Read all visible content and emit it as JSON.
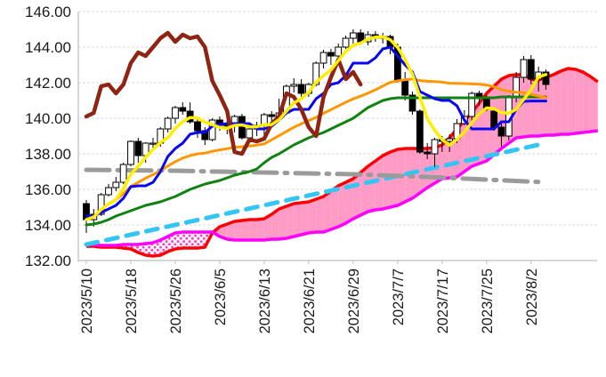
{
  "chart_data": {
    "type": "candlestick",
    "title": "",
    "xlabel": "",
    "ylabel": "",
    "ylim": [
      132,
      146
    ],
    "y_tick_step": 2,
    "grid": true,
    "legend_position": "none",
    "y_tick_labels": [
      "146.00",
      "144.00",
      "142.00",
      "140.00",
      "138.00",
      "136.00",
      "134.00",
      "132.00"
    ],
    "x_tick_labels": [
      "2023/5/10",
      "2023/5/18",
      "2023/5/26",
      "2023/6/5",
      "2023/6/13",
      "2023/6/21",
      "2023/6/29",
      "2023/7/7",
      "2023/7/17",
      "2023/7/25",
      "2023/8/2"
    ],
    "x_tick_interval": 6,
    "dates": [
      "2023/5/10",
      "2023/5/11",
      "2023/5/12",
      "2023/5/15",
      "2023/5/16",
      "2023/5/17",
      "2023/5/18",
      "2023/5/19",
      "2023/5/22",
      "2023/5/23",
      "2023/5/24",
      "2023/5/25",
      "2023/5/26",
      "2023/5/29",
      "2023/5/30",
      "2023/5/31",
      "2023/6/1",
      "2023/6/2",
      "2023/6/5",
      "2023/6/6",
      "2023/6/7",
      "2023/6/8",
      "2023/6/9",
      "2023/6/12",
      "2023/6/13",
      "2023/6/14",
      "2023/6/15",
      "2023/6/16",
      "2023/6/19",
      "2023/6/20",
      "2023/6/21",
      "2023/6/22",
      "2023/6/23",
      "2023/6/26",
      "2023/6/27",
      "2023/6/28",
      "2023/6/29",
      "2023/6/30",
      "2023/7/3",
      "2023/7/4",
      "2023/7/5",
      "2023/7/6",
      "2023/7/7",
      "2023/7/10",
      "2023/7/11",
      "2023/7/12",
      "2023/7/13",
      "2023/7/14",
      "2023/7/17",
      "2023/7/18",
      "2023/7/19",
      "2023/7/20",
      "2023/7/21",
      "2023/7/24",
      "2023/7/25",
      "2023/7/26",
      "2023/7/27",
      "2023/7/28",
      "2023/7/31",
      "2023/8/1",
      "2023/8/2",
      "2023/8/3",
      "2023/8/4"
    ],
    "ohlc": {
      "open": [
        135.2,
        134.3,
        134.6,
        135.7,
        136.1,
        136.4,
        137.4,
        138.7,
        137.9,
        138.6,
        138.6,
        139.4,
        140.0,
        140.6,
        140.4,
        139.8,
        139.3,
        138.8,
        139.9,
        139.6,
        139.6,
        140.1,
        138.9,
        139.4,
        139.6,
        140.2,
        140.1,
        140.3,
        141.8,
        141.9,
        141.4,
        141.9,
        143.1,
        143.7,
        143.5,
        144.0,
        144.5,
        144.8,
        144.3,
        144.7,
        144.5,
        144.6,
        144.0,
        142.1,
        141.3,
        140.4,
        138.1,
        138.0,
        138.8,
        138.7,
        138.85,
        139.7,
        140.1,
        141.4,
        141.2,
        140.4,
        139.5,
        139.0,
        141.2,
        142.3,
        143.3,
        142.2,
        142.6
      ],
      "high": [
        135.4,
        134.9,
        135.8,
        136.3,
        136.7,
        137.5,
        138.75,
        138.9,
        138.65,
        138.9,
        139.5,
        140.1,
        140.7,
        140.9,
        140.9,
        140.0,
        139.5,
        140.0,
        140.1,
        139.9,
        140.2,
        140.25,
        139.6,
        139.8,
        140.3,
        140.4,
        141.1,
        141.9,
        142.25,
        142.2,
        142.0,
        143.2,
        143.85,
        143.9,
        144.2,
        144.65,
        145.0,
        145.0,
        144.9,
        144.9,
        144.8,
        144.7,
        144.2,
        142.6,
        141.5,
        140.5,
        138.6,
        138.9,
        139.0,
        139.1,
        139.95,
        140.45,
        141.5,
        141.55,
        141.3,
        140.6,
        139.8,
        141.3,
        142.6,
        143.5,
        143.55,
        142.9,
        142.75
      ],
      "low": [
        133.55,
        133.9,
        134.5,
        135.6,
        135.9,
        136.3,
        137.3,
        137.5,
        137.5,
        138.2,
        138.4,
        139.2,
        139.7,
        140.2,
        139.7,
        138.9,
        138.5,
        138.7,
        139.3,
        139.1,
        139.2,
        138.8,
        138.75,
        139.0,
        139.0,
        139.85,
        139.85,
        140.2,
        141.45,
        141.2,
        141.2,
        141.8,
        142.8,
        143.0,
        143.3,
        143.9,
        144.2,
        144.2,
        144.1,
        144.3,
        144.2,
        143.6,
        142.0,
        141.0,
        140.2,
        138.0,
        137.7,
        137.25,
        138.1,
        138.1,
        138.6,
        139.6,
        139.75,
        140.7,
        140.4,
        139.3,
        138.4,
        138.75,
        140.9,
        142.0,
        141.9,
        141.5,
        141.6
      ],
      "close": [
        134.3,
        134.6,
        135.7,
        136.1,
        136.4,
        137.4,
        138.7,
        137.9,
        138.6,
        138.6,
        139.4,
        140.0,
        140.6,
        140.4,
        139.8,
        139.3,
        138.8,
        139.9,
        139.6,
        139.6,
        140.1,
        138.9,
        139.4,
        139.6,
        140.2,
        140.1,
        140.3,
        141.8,
        141.9,
        141.4,
        141.9,
        143.1,
        143.7,
        143.5,
        144.0,
        144.5,
        144.8,
        144.3,
        144.7,
        144.5,
        144.6,
        144.0,
        142.1,
        141.3,
        140.4,
        138.1,
        138.0,
        138.8,
        138.7,
        138.85,
        139.7,
        140.1,
        141.4,
        141.2,
        140.5,
        139.5,
        139.0,
        141.2,
        142.3,
        143.3,
        142.2,
        142.6,
        141.9
      ]
    },
    "candle_style": {
      "up_fill": "#ffffff",
      "down_fill": "#000000",
      "border": "#000000"
    },
    "series": [
      {
        "name": "sma5-line",
        "color": "#ffee00",
        "width": 3.5,
        "values": [
          134.3,
          134.45,
          134.87,
          135.18,
          135.42,
          136.04,
          136.86,
          137.3,
          137.8,
          138.24,
          138.64,
          138.9,
          139.44,
          139.8,
          140.04,
          140.02,
          139.78,
          139.64,
          139.48,
          139.44,
          139.6,
          139.62,
          139.52,
          139.52,
          139.64,
          139.64,
          139.92,
          140.4,
          140.86,
          141.1,
          141.46,
          142.02,
          142.4,
          142.72,
          143.24,
          143.76,
          144.1,
          144.22,
          144.46,
          144.56,
          144.58,
          144.42,
          143.98,
          143.3,
          142.48,
          141.18,
          139.98,
          139.32,
          138.8,
          138.49,
          138.81,
          139.23,
          139.75,
          140.25,
          140.58,
          140.54,
          140.32,
          140.28,
          140.5,
          141.06,
          141.6,
          142.32,
          142.46
        ]
      },
      {
        "name": "tenkan-line",
        "color": "#0808f0",
        "width": 3,
        "values": [
          134.5,
          134.5,
          134.7,
          134.9,
          135.1,
          135.5,
          136.15,
          136.2,
          136.2,
          136.4,
          137.0,
          137.85,
          138.3,
          138.6,
          139.1,
          139.2,
          139.2,
          139.55,
          139.65,
          139.7,
          139.7,
          139.7,
          139.7,
          139.4,
          139.4,
          139.55,
          139.9,
          140.3,
          140.5,
          140.5,
          140.5,
          141.1,
          141.4,
          141.9,
          142.0,
          142.4,
          143.1,
          143.1,
          143.1,
          143.4,
          143.9,
          144.0,
          143.5,
          143.0,
          142.6,
          141.5,
          141.3,
          141.1,
          141.0,
          141.0,
          140.7,
          139.9,
          139.4,
          139.4,
          139.4,
          139.4,
          139.8,
          139.8,
          140.5,
          140.95,
          140.97,
          140.97,
          140.97
        ]
      },
      {
        "name": "kijun-line",
        "color": "#128212",
        "width": 3,
        "values": [
          134.0,
          134.05,
          134.15,
          134.3,
          134.5,
          134.65,
          134.8,
          134.95,
          135.1,
          135.2,
          135.3,
          135.45,
          135.6,
          135.8,
          136.0,
          136.15,
          136.3,
          136.4,
          136.5,
          136.65,
          136.8,
          136.9,
          137.0,
          137.15,
          137.5,
          137.8,
          138.0,
          138.25,
          138.5,
          138.7,
          138.9,
          139.05,
          139.2,
          139.4,
          139.6,
          139.8,
          140.0,
          140.3,
          140.6,
          140.8,
          141.0,
          141.1,
          141.15,
          141.15,
          141.15,
          141.15,
          141.15,
          141.15,
          141.15,
          141.15,
          141.15,
          141.15,
          141.15,
          141.15,
          141.15,
          141.15,
          141.2,
          141.2,
          141.2,
          141.2,
          141.2,
          141.2,
          141.2
        ]
      },
      {
        "name": "sma25-line",
        "color": "#ff9800",
        "width": 3,
        "values": [
          134.3,
          134.45,
          134.87,
          135.18,
          135.42,
          135.75,
          136.17,
          136.39,
          136.63,
          136.83,
          137.06,
          137.31,
          137.56,
          137.76,
          137.9,
          138.0,
          138.04,
          138.14,
          138.22,
          138.29,
          138.37,
          138.4,
          138.44,
          138.49,
          138.56,
          138.79,
          139.02,
          139.26,
          139.49,
          139.69,
          139.87,
          140.05,
          140.28,
          140.48,
          140.69,
          140.9,
          141.09,
          141.24,
          141.41,
          141.6,
          141.81,
          142.02,
          142.1,
          142.17,
          142.2,
          142.12,
          142.09,
          142.06,
          142.03,
          141.97,
          141.96,
          141.95,
          141.93,
          141.91,
          141.87,
          141.77,
          141.61,
          141.51,
          141.46,
          141.43,
          141.34,
          141.25,
          141.16
        ]
      },
      {
        "name": "chikou-line",
        "color": "#8f2413",
        "width": 4.5,
        "values": [
          140.1,
          140.3,
          141.8,
          141.9,
          141.4,
          141.9,
          143.1,
          143.7,
          143.5,
          144.0,
          144.5,
          144.8,
          144.3,
          144.7,
          144.5,
          144.6,
          144.0,
          142.1,
          141.3,
          140.4,
          138.1,
          138.0,
          138.8,
          138.7,
          138.85,
          139.7,
          140.1,
          141.4,
          141.2,
          140.5,
          139.5,
          139.0,
          141.2,
          142.3,
          143.3,
          142.2,
          142.6,
          141.9
        ]
      }
    ],
    "overlays": [
      {
        "name": "trendline",
        "color": "#33c6f4",
        "width": 5,
        "dash": "13 10",
        "cap": "round",
        "points": [
          [
            0,
            132.9
          ],
          [
            62,
            138.6
          ]
        ]
      },
      {
        "name": "long-ma-line",
        "color": "#9b9b9b",
        "width": 5,
        "dash": "26 9 3 9",
        "cap": "round",
        "points": [
          [
            0,
            137.1
          ],
          [
            12,
            137.05
          ],
          [
            24,
            136.95
          ],
          [
            36,
            136.85
          ],
          [
            46,
            136.7
          ],
          [
            54,
            136.55
          ],
          [
            62,
            136.4
          ]
        ]
      }
    ],
    "cloud": {
      "fill_bull": "#ff9bc5",
      "fill_bear_dot_color": "#ff3dcf",
      "span_a_color": "#fe0000",
      "span_b_color": "#ff00ff",
      "line_width": 3.5,
      "senkou_a": [
        132.8,
        132.8,
        132.75,
        132.75,
        132.75,
        132.7,
        132.65,
        132.45,
        132.3,
        132.25,
        132.3,
        132.5,
        132.65,
        132.7,
        132.7,
        132.7,
        132.75,
        133.55,
        133.9,
        134.05,
        134.2,
        134.25,
        134.3,
        134.3,
        134.35,
        134.6,
        134.9,
        135.05,
        135.2,
        135.25,
        135.3,
        135.45,
        135.6,
        135.9,
        136.2,
        136.4,
        136.6,
        136.95,
        137.3,
        137.6,
        137.9,
        138.1,
        138.25,
        138.3,
        138.3,
        138.3,
        138.3,
        138.35,
        138.5,
        138.9,
        139.4,
        139.85,
        140.3,
        140.85,
        141.4,
        141.8,
        142.2,
        142.4,
        142.45,
        142.45,
        142.2,
        142.15,
        142.3,
        142.45,
        142.65,
        142.8,
        142.75,
        142.6,
        142.35,
        142.05
      ],
      "senkou_b": [
        132.9,
        132.9,
        132.85,
        132.85,
        132.85,
        132.9,
        132.9,
        132.9,
        132.95,
        133.0,
        133.15,
        133.35,
        133.55,
        133.6,
        133.6,
        133.6,
        133.6,
        133.6,
        133.35,
        133.2,
        133.15,
        133.15,
        133.15,
        133.15,
        133.15,
        133.2,
        133.2,
        133.25,
        133.35,
        133.45,
        133.55,
        133.6,
        133.6,
        133.75,
        133.9,
        134.1,
        134.35,
        134.55,
        134.75,
        134.85,
        134.9,
        135.0,
        135.1,
        135.3,
        135.5,
        135.8,
        136.1,
        136.35,
        136.6,
        136.65,
        136.7,
        137.0,
        137.3,
        137.45,
        137.6,
        137.95,
        138.3,
        138.6,
        138.9,
        138.95,
        139.0,
        139.0,
        139.05,
        139.05,
        139.1,
        139.1,
        139.15,
        139.2,
        139.25,
        139.3
      ]
    },
    "style": {
      "background": "#ffffff",
      "gridline_color": "#d9d9d9",
      "axis_color": "#bfbfbf",
      "label_color": "#1a1a1a"
    }
  }
}
